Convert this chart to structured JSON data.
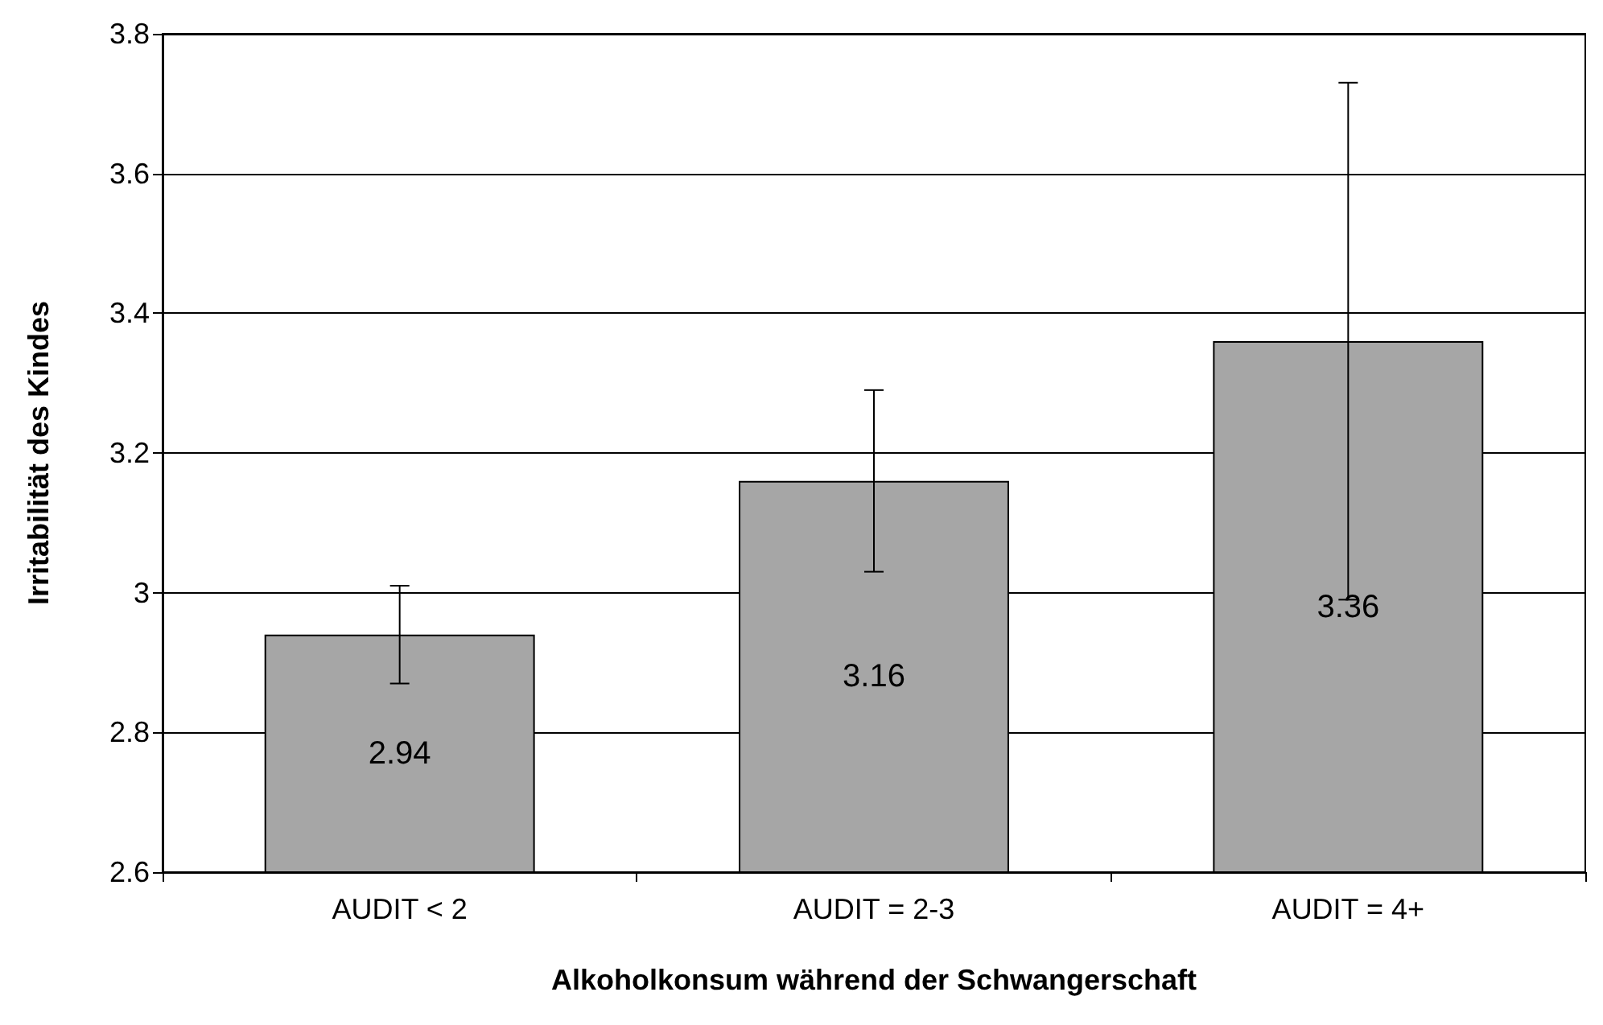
{
  "chart_data": {
    "type": "bar",
    "xlabel": "Alkoholkonsum während der Schwangerschaft",
    "ylabel": "Irritabilität des Kindes",
    "categories": [
      "AUDIT < 2",
      "AUDIT = 2-3",
      "AUDIT = 4+"
    ],
    "values": [
      2.94,
      3.16,
      3.36
    ],
    "errors": [
      0.07,
      0.13,
      0.37
    ],
    "color": "#a6a6a6",
    "data_labels": true,
    "ylim": [
      2.6,
      3.8
    ],
    "yticks": [
      2.6,
      2.8,
      3,
      3.2,
      3.4,
      3.6,
      3.8
    ],
    "grid": "y"
  }
}
